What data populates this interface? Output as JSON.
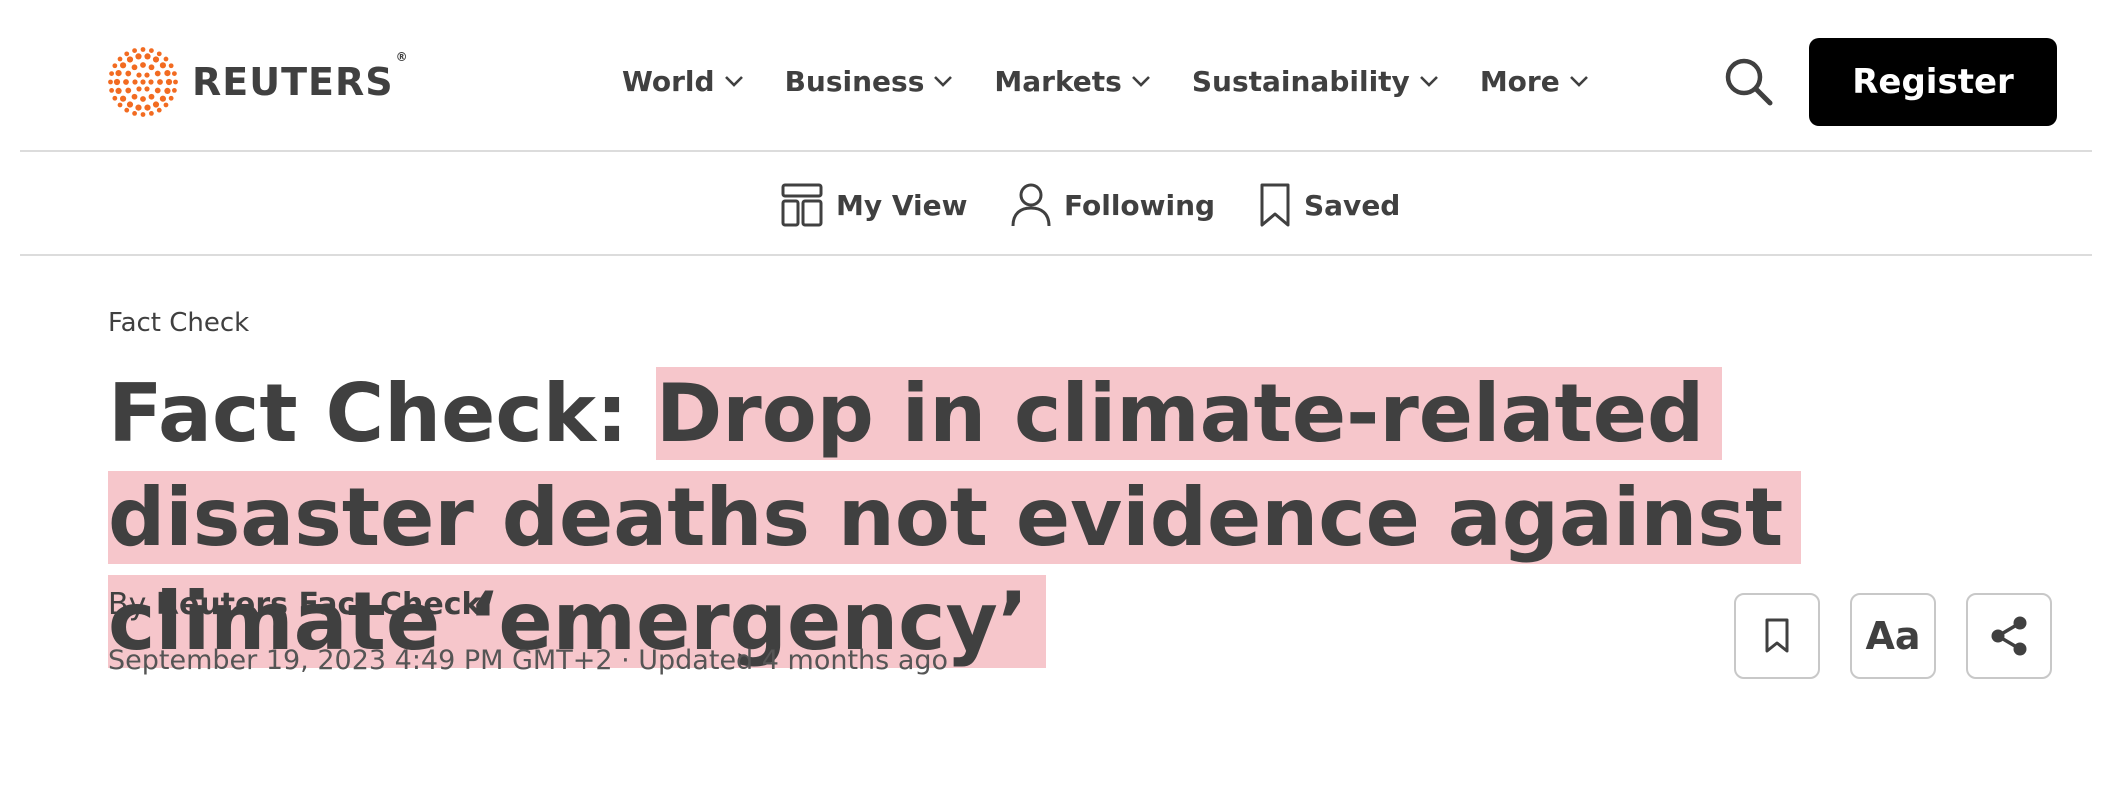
{
  "header": {
    "logo_text": "REUTERS",
    "logo_mark": "®",
    "nav": [
      {
        "label": "World",
        "icon": "chevron-down-icon"
      },
      {
        "label": "Business",
        "icon": "chevron-down-icon"
      },
      {
        "label": "Markets",
        "icon": "chevron-down-icon"
      },
      {
        "label": "Sustainability",
        "icon": "chevron-down-icon"
      },
      {
        "label": "More",
        "icon": "chevron-down-icon"
      }
    ],
    "register_label": "Register"
  },
  "subnav": [
    {
      "label": "My View",
      "icon": "layout-icon"
    },
    {
      "label": "Following",
      "icon": "person-icon"
    },
    {
      "label": "Saved",
      "icon": "bookmark-icon"
    }
  ],
  "article": {
    "kicker": "Fact Check",
    "headline_prefix": "Fact Check: ",
    "headline_highlight": "Drop in climate-related disaster deaths not evidence against climate ‘emergency’",
    "byline_prefix": "By ",
    "byline_author": "Reuters Fact Check",
    "dateline": "September 19, 2023 4:49 PM GMT+2 · Updated 4 months ago"
  },
  "tools": {
    "text_size_label": "Aa"
  },
  "colors": {
    "brand_orange": "#f26b21",
    "highlight": "#f6c6cb",
    "text": "#404040",
    "register_bg": "#000000"
  }
}
